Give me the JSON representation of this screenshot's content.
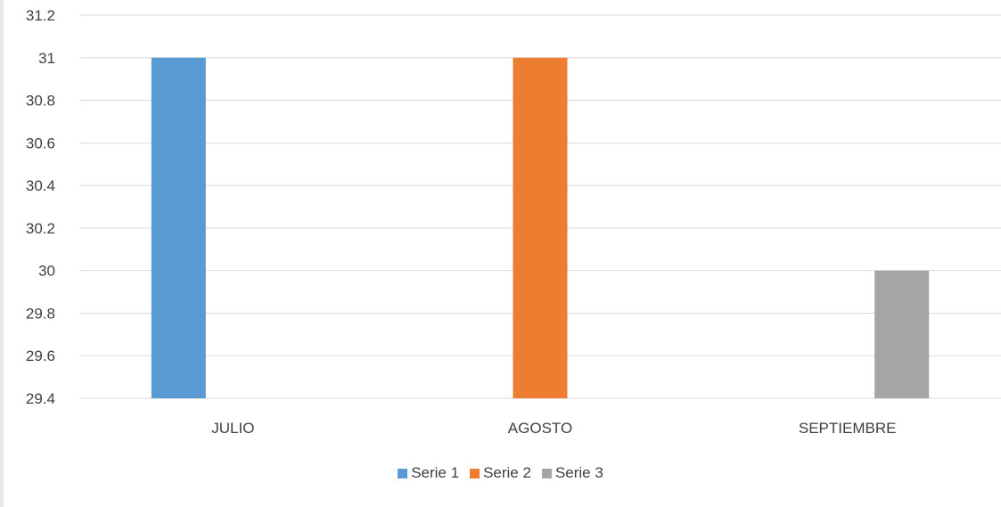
{
  "chart_data": {
    "type": "bar",
    "categories": [
      "JULIO",
      "AGOSTO",
      "SEPTIEMBRE"
    ],
    "series": [
      {
        "name": "Serie 1",
        "color": "#5b9bd5",
        "values": [
          31,
          null,
          null
        ]
      },
      {
        "name": "Serie 2",
        "color": "#ed7d31",
        "values": [
          null,
          31,
          null
        ]
      },
      {
        "name": "Serie 3",
        "color": "#a5a5a5",
        "values": [
          null,
          null,
          30
        ]
      }
    ],
    "ylim": [
      29.4,
      31.2
    ],
    "yticks": [
      "31.2",
      "31",
      "30.8",
      "30.6",
      "30.4",
      "30.2",
      "30",
      "29.8",
      "29.6",
      "29.4"
    ],
    "grid": true,
    "legend_position": "bottom"
  }
}
